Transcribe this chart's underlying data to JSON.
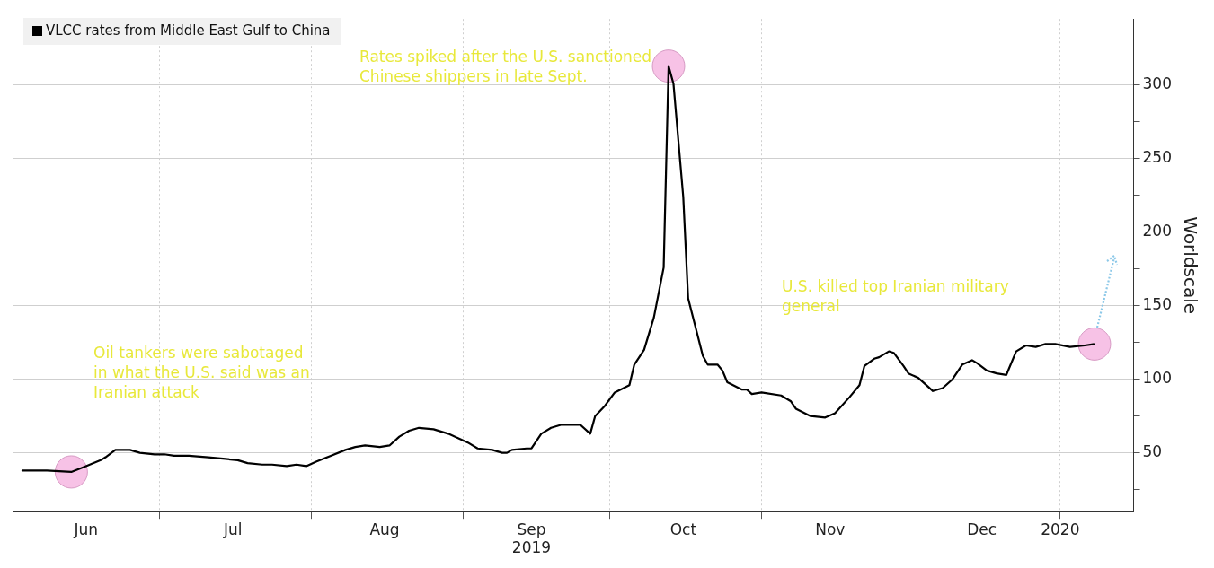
{
  "chart_data": {
    "type": "line",
    "ylabel": "Worldscale",
    "x": [
      "2019-06-03",
      "2019-06-08",
      "2019-06-13",
      "2019-06-16",
      "2019-06-19",
      "2019-06-20",
      "2019-06-22",
      "2019-06-25",
      "2019-06-27",
      "2019-06-30",
      "2019-07-02",
      "2019-07-04",
      "2019-07-07",
      "2019-07-11",
      "2019-07-14",
      "2019-07-17",
      "2019-07-19",
      "2019-07-22",
      "2019-07-24",
      "2019-07-27",
      "2019-07-29",
      "2019-07-31",
      "2019-08-02",
      "2019-08-05",
      "2019-08-08",
      "2019-08-10",
      "2019-08-12",
      "2019-08-15",
      "2019-08-17",
      "2019-08-19",
      "2019-08-21",
      "2019-08-23",
      "2019-08-26",
      "2019-08-29",
      "2019-08-31",
      "2019-09-02",
      "2019-09-04",
      "2019-09-07",
      "2019-09-09",
      "2019-09-10",
      "2019-09-11",
      "2019-09-14",
      "2019-09-15",
      "2019-09-17",
      "2019-09-19",
      "2019-09-21",
      "2019-09-25",
      "2019-09-27",
      "2019-09-28",
      "2019-09-30",
      "2019-10-02",
      "2019-10-05",
      "2019-10-06",
      "2019-10-08",
      "2019-10-10",
      "2019-10-12",
      "2019-10-13",
      "2019-10-14",
      "2019-10-16",
      "2019-10-17",
      "2019-10-20",
      "2019-10-21",
      "2019-10-23",
      "2019-10-24",
      "2019-10-25",
      "2019-10-28",
      "2019-10-29",
      "2019-10-30",
      "2019-11-01",
      "2019-11-05",
      "2019-11-07",
      "2019-11-08",
      "2019-11-11",
      "2019-11-14",
      "2019-11-16",
      "2019-11-19",
      "2019-11-21",
      "2019-11-22",
      "2019-11-24",
      "2019-11-25",
      "2019-11-27",
      "2019-11-28",
      "2019-11-30",
      "2019-12-01",
      "2019-12-03",
      "2019-12-05",
      "2019-12-06",
      "2019-12-08",
      "2019-12-10",
      "2019-12-12",
      "2019-12-14",
      "2019-12-15",
      "2019-12-17",
      "2019-12-19",
      "2019-12-21",
      "2019-12-23",
      "2019-12-25",
      "2019-12-27",
      "2019-12-29",
      "2019-12-31",
      "2020-01-03",
      "2020-01-06",
      "2020-01-08"
    ],
    "series": [
      {
        "name": "VLCC rates from Middle East Gulf to China",
        "color": "#000000",
        "values": [
          38,
          38,
          37,
          41,
          45,
          47,
          52,
          52,
          50,
          49,
          49,
          48,
          48,
          47,
          46,
          45,
          43,
          42,
          42,
          41,
          42,
          41,
          44,
          48,
          52,
          54,
          55,
          54,
          55,
          61,
          65,
          67,
          66,
          63,
          60,
          57,
          53,
          52,
          50,
          50,
          52,
          53,
          53,
          63,
          67,
          69,
          69,
          63,
          75,
          82,
          91,
          96,
          110,
          120,
          142,
          176,
          313,
          301,
          224,
          155,
          116,
          110,
          110,
          106,
          98,
          93,
          93,
          90,
          91,
          89,
          85,
          80,
          75,
          74,
          77,
          88,
          96,
          109,
          114,
          115,
          119,
          118,
          109,
          104,
          101,
          95,
          92,
          94,
          100,
          110,
          113,
          111,
          106,
          104,
          103,
          119,
          123,
          122,
          124,
          124,
          122,
          123,
          124
        ]
      }
    ],
    "xlim": [
      "2019-06-01",
      "2020-01-16"
    ],
    "xticks": [
      {
        "value": "2019-06-16",
        "label": "Jun"
      },
      {
        "value": "2019-07-01",
        "label": null
      },
      {
        "value": "2019-07-16",
        "label": "Jul"
      },
      {
        "value": "2019-08-01",
        "label": null
      },
      {
        "value": "2019-08-16",
        "label": "Aug"
      },
      {
        "value": "2019-09-01",
        "label": null
      },
      {
        "value": "2019-09-15",
        "label": "Sep\n2019"
      },
      {
        "value": "2019-10-01",
        "label": null
      },
      {
        "value": "2019-10-16",
        "label": "Oct"
      },
      {
        "value": "2019-11-01",
        "label": null
      },
      {
        "value": "2019-11-15",
        "label": "Nov"
      },
      {
        "value": "2019-12-01",
        "label": null
      },
      {
        "value": "2019-12-16",
        "label": "Dec"
      },
      {
        "value": "2020-01-01",
        "label": "2020"
      }
    ],
    "ylim": [
      10,
      345
    ],
    "yticks": [
      {
        "value": 25,
        "label": null
      },
      50,
      {
        "value": 75,
        "label": null
      },
      100,
      {
        "value": 125,
        "label": null
      },
      150,
      {
        "value": 175,
        "label": null
      },
      200,
      {
        "value": 225,
        "label": null
      },
      250,
      {
        "value": 275,
        "label": null
      },
      300,
      {
        "value": 325,
        "label": null
      }
    ],
    "grid": true,
    "legend": "top left",
    "marker": "none",
    "line_style": "solid",
    "annotations": [
      "Oil tankers were sabotaged in what the U.S. said was an Iranian attack",
      "Rates spiked after the U.S. sanctioned Chinese shippers in late Sept.",
      "U.S. killed top Iranian military general"
    ]
  }
}
